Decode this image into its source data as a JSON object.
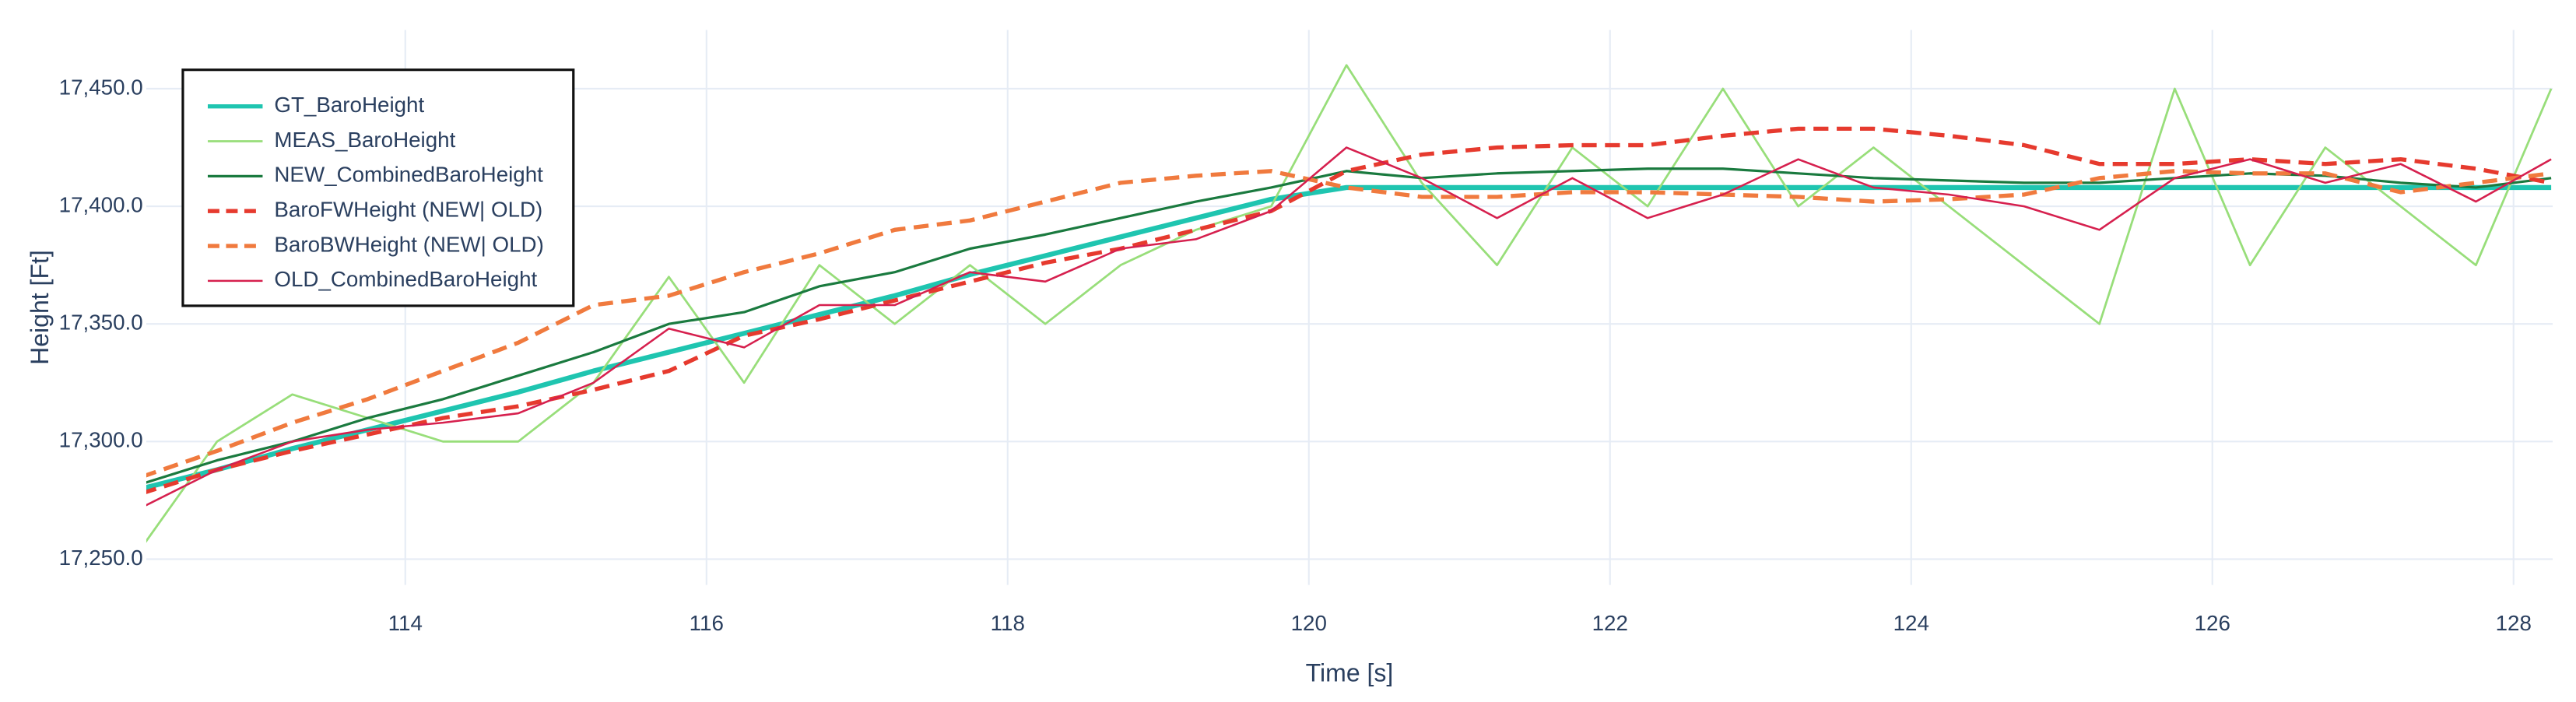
{
  "chart_data": {
    "type": "line",
    "xlabel": "Time [s]",
    "ylabel": "Height [Ft]",
    "xlim": [
      112.28,
      128.26
    ],
    "ylim": [
      17239,
      17475
    ],
    "xticks": [
      114,
      116,
      118,
      120,
      122,
      124,
      126,
      128
    ],
    "yticks": [
      {
        "value": 17250,
        "label": "17,250.0"
      },
      {
        "value": 17300,
        "label": "17,300.0"
      },
      {
        "value": 17350,
        "label": "17,350.0"
      },
      {
        "value": 17400,
        "label": "17,400.0"
      },
      {
        "value": 17450,
        "label": "17,450.0"
      }
    ],
    "grid": true,
    "legend": "upper left",
    "x": [
      112.25,
      112.75,
      113.25,
      113.75,
      114.25,
      114.75,
      115.25,
      115.75,
      116.25,
      116.75,
      117.25,
      117.75,
      118.25,
      118.75,
      119.25,
      119.75,
      120.25,
      120.75,
      121.25,
      121.75,
      122.25,
      122.75,
      123.25,
      123.75,
      124.25,
      124.75,
      125.25,
      125.75,
      126.25,
      126.75,
      127.25,
      127.75,
      128.25
    ],
    "series": [
      {
        "name": "GT_BaroHeight",
        "color": "#1fc5b0",
        "width": 3,
        "dash": false,
        "values": [
          17280,
          17288,
          17297,
          17305,
          17313,
          17321,
          17330,
          17338,
          17346,
          17354,
          17362,
          17371,
          17379,
          17387,
          17395,
          17403,
          17408,
          17408,
          17408,
          17408,
          17408,
          17408,
          17408,
          17408,
          17408,
          17408,
          17408,
          17408,
          17408,
          17408,
          17408,
          17408,
          17408
        ]
      },
      {
        "name": "MEAS_BaroHeight",
        "color": "#98de7a",
        "width": 1.3,
        "dash": false,
        "values": [
          17255,
          17300,
          17320,
          17310,
          17300,
          17300,
          17325,
          17370,
          17325,
          17375,
          17350,
          17375,
          17350,
          17375,
          17390,
          17400,
          17460,
          17410,
          17375,
          17425,
          17400,
          17450,
          17400,
          17425,
          17400,
          17375,
          17350,
          17450,
          17375,
          17425,
          17400,
          17375,
          17450
        ]
      },
      {
        "name": "NEW_CombinedBaroHeight",
        "color": "#1a7a3f",
        "width": 1.5,
        "dash": false,
        "values": [
          17282,
          17292,
          17300,
          17310,
          17318,
          17328,
          17338,
          17350,
          17355,
          17366,
          17372,
          17382,
          17388,
          17395,
          17402,
          17408,
          17415,
          17412,
          17414,
          17415,
          17416,
          17416,
          17414,
          17412,
          17411,
          17410,
          17410,
          17412,
          17414,
          17413,
          17410,
          17408,
          17412
        ]
      },
      {
        "name": "BaroFWHeight (NEW| OLD)",
        "color": "#e63a2e",
        "width": 2.5,
        "dash": true,
        "values": [
          17278,
          17288,
          17296,
          17303,
          17310,
          17315,
          17322,
          17330,
          17345,
          17352,
          17360,
          17368,
          17376,
          17382,
          17390,
          17398,
          17415,
          17422,
          17425,
          17426,
          17426,
          17430,
          17433,
          17433,
          17430,
          17426,
          17418,
          17418,
          17420,
          17418,
          17420,
          17416,
          17410
        ]
      },
      {
        "name": "BaroBWHeight (NEW| OLD)",
        "color": "#f07a3e",
        "width": 2.5,
        "dash": true,
        "values": [
          17285,
          17296,
          17308,
          17318,
          17330,
          17342,
          17358,
          17362,
          17372,
          17380,
          17390,
          17394,
          17402,
          17410,
          17413,
          17415,
          17408,
          17404,
          17404,
          17406,
          17406,
          17405,
          17404,
          17402,
          17403,
          17405,
          17412,
          17415,
          17414,
          17414,
          17406,
          17410,
          17414
        ]
      },
      {
        "name": "OLD_CombinedBaroHeight",
        "color": "#d6204e",
        "width": 1.2,
        "dash": false,
        "values": [
          17272,
          17288,
          17300,
          17305,
          17308,
          17312,
          17325,
          17348,
          17340,
          17358,
          17358,
          17372,
          17368,
          17382,
          17386,
          17398,
          17425,
          17412,
          17395,
          17412,
          17395,
          17405,
          17420,
          17408,
          17405,
          17400,
          17390,
          17412,
          17420,
          17410,
          17418,
          17402,
          17420
        ]
      }
    ]
  }
}
